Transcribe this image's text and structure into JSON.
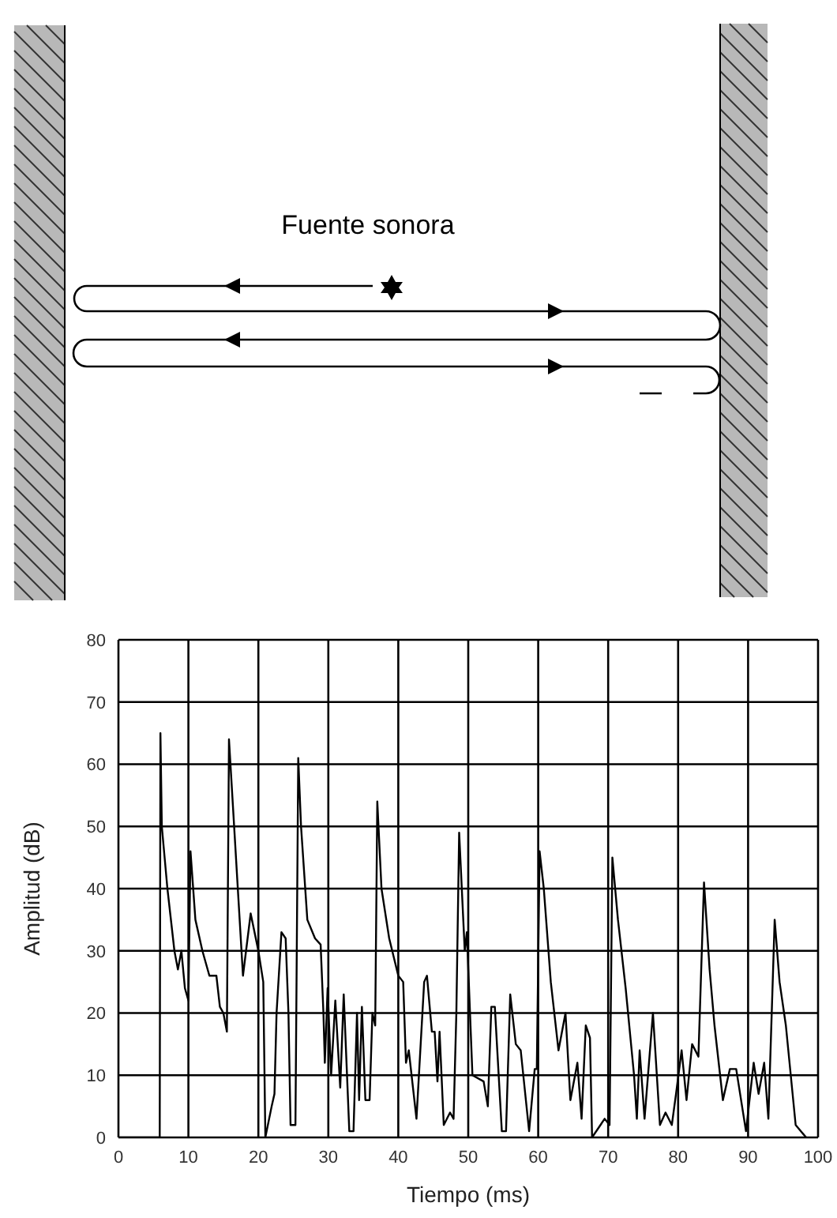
{
  "chart_data": {
    "type": "line",
    "xlabel": "Tiempo (ms)",
    "ylabel": "Amplitud (dB)",
    "annotations": [
      "Fuente sonora"
    ],
    "x": [
      0,
      5.9,
      6,
      6.2,
      7,
      8,
      8.5,
      9,
      9.5,
      10,
      10.3,
      11,
      12,
      13,
      14,
      14.5,
      15,
      15.5,
      15.8,
      17.8,
      18.9,
      20,
      20.7,
      21,
      21.9,
      22.3,
      22.6,
      23.3,
      23.9,
      24.3,
      24.6,
      25.3,
      25.7,
      26.1,
      27,
      28.1,
      28.9,
      29.3,
      29.5,
      29.9,
      30.4,
      31,
      31.7,
      32.2,
      33,
      33.6,
      34.1,
      34.4,
      34.8,
      35.3,
      35.9,
      36.3,
      36.7,
      37,
      37.6,
      38.7,
      40,
      40.7,
      41.1,
      41.5,
      42.6,
      43.7,
      44.1,
      44.8,
      45.2,
      45.6,
      45.9,
      46.5,
      47.4,
      47.9,
      48.3,
      48.7,
      49.5,
      49.8,
      50.6,
      52.2,
      52.8,
      53.3,
      53.8,
      54.8,
      55.4,
      56,
      56.8,
      57.5,
      58.7,
      59.5,
      59.8,
      60.2,
      60.8,
      61.8,
      62.9,
      63.9,
      64.6,
      65.6,
      66.2,
      66.8,
      67.4,
      67.7,
      69.5,
      70.2,
      70.6,
      71.4,
      72.5,
      73.7,
      74.1,
      74.5,
      75.2,
      76.4,
      77.4,
      78.2,
      79.1,
      79.7,
      80.5,
      81.2,
      82,
      82.9,
      83.7,
      84.5,
      85.2,
      86.4,
      87.4,
      88.3,
      89.7,
      90.8,
      91.5,
      92.3,
      92.9,
      93.8,
      94.5,
      95.4,
      96.8,
      98.3
    ],
    "series": [
      {
        "color": "#000000",
        "values": [
          0,
          0,
          65,
          50,
          40,
          30,
          27,
          30,
          24,
          22,
          46,
          35,
          30,
          26,
          26,
          21,
          20,
          17,
          64,
          26,
          36,
          30,
          25,
          0,
          5,
          7,
          20,
          33,
          32,
          20,
          2,
          2,
          61,
          50,
          35,
          32,
          31,
          20,
          12,
          24,
          10,
          22,
          8,
          23,
          1,
          1,
          20,
          6,
          21,
          6,
          6,
          20,
          18,
          54,
          40,
          32,
          26,
          25,
          12,
          14,
          3,
          25,
          26,
          17,
          17,
          9,
          17,
          2,
          4,
          3,
          20,
          49,
          30,
          33,
          10,
          9,
          5,
          21,
          21,
          1,
          1,
          23,
          15,
          14,
          1,
          11,
          11,
          46,
          40,
          25,
          14,
          20,
          6,
          12,
          3,
          18,
          16,
          0,
          3,
          2,
          45,
          35,
          24,
          10,
          3,
          14,
          3,
          20,
          2,
          4,
          2,
          7,
          14,
          6,
          15,
          13,
          41,
          27,
          18,
          6,
          11,
          11,
          1,
          12,
          7,
          12,
          3,
          35,
          25,
          18,
          2,
          0
        ]
      }
    ],
    "xlim": [
      0,
      100
    ],
    "xticks": [
      0,
      10,
      20,
      30,
      40,
      50,
      60,
      70,
      80,
      90,
      100
    ],
    "ylim": [
      0,
      80
    ],
    "yticks": [
      0,
      10,
      20,
      30,
      40,
      50,
      60,
      70,
      80
    ],
    "grid": true,
    "marker": "none",
    "line_style": "solid"
  }
}
